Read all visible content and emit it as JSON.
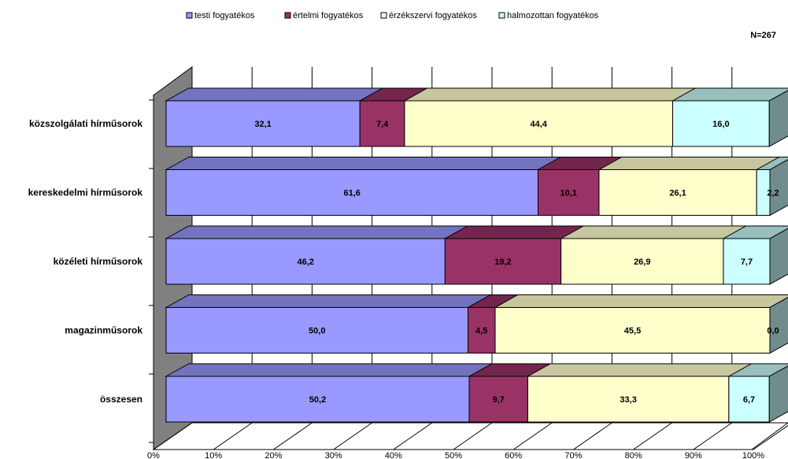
{
  "chart_data": {
    "type": "bar",
    "orientation": "horizontal",
    "stacked": true,
    "percent_stacked": true,
    "three_d": true,
    "title": "",
    "xlabel": "",
    "ylabel": "",
    "note": "N=267",
    "xlim": [
      0,
      100
    ],
    "x_ticks": [
      "0%",
      "10%",
      "20%",
      "30%",
      "40%",
      "50%",
      "60%",
      "70%",
      "80%",
      "90%",
      "100%"
    ],
    "categories": [
      "közszolgálati hírműsorok",
      "kereskedelmi hírműsorok",
      "közéleti hírműsorok",
      "magazinműsorok",
      "összesen"
    ],
    "series": [
      {
        "name": "testi fogyatékos",
        "values": [
          32.1,
          61.6,
          46.2,
          50.0,
          50.2
        ],
        "labels": [
          "32,1",
          "61,6",
          "46,2",
          "50,0",
          "50,2"
        ],
        "color": "#9999ff"
      },
      {
        "name": "értelmi fogyatékos",
        "values": [
          7.4,
          10.1,
          19.2,
          4.5,
          9.7
        ],
        "labels": [
          "7,4",
          "10,1",
          "19,2",
          "4,5",
          "9,7"
        ],
        "color": "#993366"
      },
      {
        "name": "érzékszervi fogyatékos",
        "values": [
          44.4,
          26.1,
          26.9,
          45.5,
          33.3
        ],
        "labels": [
          "44,4",
          "26,1",
          "26,9",
          "45,5",
          "33,3"
        ],
        "color": "#ffffcc"
      },
      {
        "name": "halmozottan fogyatékos",
        "values": [
          16.0,
          2.2,
          7.7,
          0.0,
          6.7
        ],
        "labels": [
          "16,0",
          "2,2",
          "7,7",
          "0,0",
          "6,7"
        ],
        "color": "#ccffff"
      }
    ],
    "legend_position": "top",
    "grid": true
  }
}
